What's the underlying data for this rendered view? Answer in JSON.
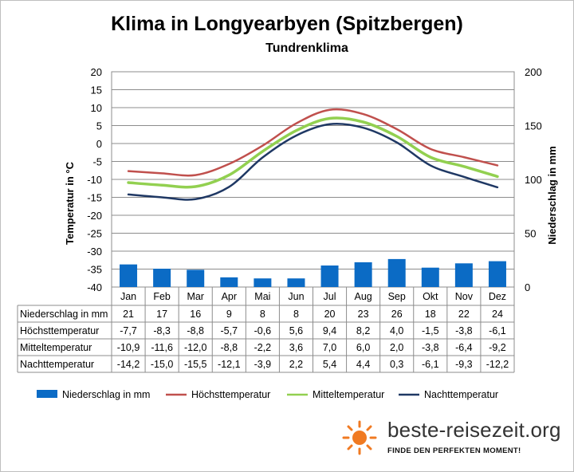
{
  "title": "Klima in Longyearbyen (Spitzbergen)",
  "subtitle": "Tundrenklima",
  "brand": {
    "name": "beste-reisezeit.org",
    "tagline": "FINDE DEN PERFEKTEN MOMENT!",
    "logo_icon": "sun-icon",
    "logo_color": "#f07a22"
  },
  "chart_data": {
    "type": "bar+line",
    "categories": [
      "Jan",
      "Feb",
      "Mar",
      "Apr",
      "Mai",
      "Jun",
      "Jul",
      "Aug",
      "Sep",
      "Okt",
      "Nov",
      "Dez"
    ],
    "y_left": {
      "label": "Temperatur in °C",
      "min": -40,
      "max": 20,
      "step": 5,
      "ticks": [
        "20",
        "15",
        "10",
        "5",
        "0",
        "-5",
        "-10",
        "-15",
        "-20",
        "-25",
        "-30",
        "-35",
        "-40"
      ]
    },
    "y_right": {
      "label": "Niederschlag in mm",
      "min": 0,
      "max": 200,
      "step": 50,
      "ticks": [
        "200",
        "150",
        "100",
        "50",
        "0"
      ]
    },
    "grid": true,
    "legend_position": "bottom",
    "bars": {
      "name": "Niederschlag in mm",
      "color": "#0b6bc5",
      "values": [
        21,
        17,
        16,
        9,
        8,
        8,
        20,
        23,
        26,
        18,
        22,
        24
      ],
      "labels": [
        "21",
        "17",
        "16",
        "9",
        "8",
        "8",
        "20",
        "23",
        "26",
        "18",
        "22",
        "24"
      ]
    },
    "series": [
      {
        "name": "Höchsttemperatur",
        "color": "#c0504d",
        "values": [
          -7.7,
          -8.3,
          -8.8,
          -5.7,
          -0.6,
          5.6,
          9.4,
          8.2,
          4.0,
          -1.5,
          -3.8,
          -6.1
        ],
        "labels": [
          "-7,7",
          "-8,3",
          "-8,8",
          "-5,7",
          "-0,6",
          "5,6",
          "9,4",
          "8,2",
          "4,0",
          "-1,5",
          "-3,8",
          "-6,1"
        ]
      },
      {
        "name": "Mitteltemperatur",
        "color": "#92d050",
        "values": [
          -10.9,
          -11.6,
          -12.0,
          -8.8,
          -2.2,
          3.6,
          7.0,
          6.0,
          2.0,
          -3.8,
          -6.4,
          -9.2
        ],
        "labels": [
          "-10,9",
          "-11,6",
          "-12,0",
          "-8,8",
          "-2,2",
          "3,6",
          "7,0",
          "6,0",
          "2,0",
          "-3,8",
          "-6,4",
          "-9,2"
        ]
      },
      {
        "name": "Nachttemperatur",
        "color": "#1f3864",
        "values": [
          -14.2,
          -15.0,
          -15.5,
          -12.1,
          -3.9,
          2.2,
          5.4,
          4.4,
          0.3,
          -6.1,
          -9.3,
          -12.2
        ],
        "labels": [
          "-14,2",
          "-15,0",
          "-15,5",
          "-12,1",
          "-3,9",
          "2,2",
          "5,4",
          "4,4",
          "0,3",
          "-6,1",
          "-9,3",
          "-12,2"
        ]
      }
    ]
  }
}
